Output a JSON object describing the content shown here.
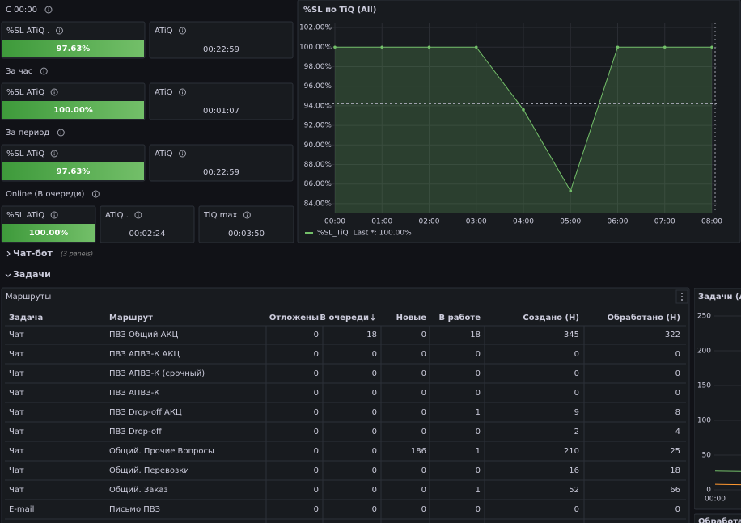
{
  "sections": [
    {
      "title": "С 00:00",
      "panels": [
        {
          "title": "%SL ATiQ .",
          "value": "97.63%",
          "highlight": true
        },
        {
          "title": "ATiQ",
          "value": "00:22:59"
        }
      ]
    },
    {
      "title": "За час",
      "panels": [
        {
          "title": "%SL ATiQ",
          "value": "100.00%",
          "highlight": true
        },
        {
          "title": "ATiQ",
          "value": "00:01:07"
        }
      ]
    },
    {
      "title": "За период",
      "panels": [
        {
          "title": "%SL ATiQ",
          "value": "97.63%",
          "highlight": true
        },
        {
          "title": "ATiQ",
          "value": "00:22:59"
        }
      ]
    },
    {
      "title": "Online (В очереди)",
      "panels": [
        {
          "title": "%SL ATiQ",
          "value": "100.00%",
          "highlight": true
        },
        {
          "title": "ATiQ .",
          "value": "00:02:24"
        },
        {
          "title": "TiQ max",
          "value": "00:03:50"
        }
      ]
    }
  ],
  "sl_chart": {
    "type": "area",
    "title": "%SL по TiQ (All)",
    "categories": [
      "00:00",
      "01:00",
      "02:00",
      "03:00",
      "04:00",
      "05:00",
      "06:00",
      "07:00",
      "08:00"
    ],
    "series": [
      {
        "name": "%SL_TiQ",
        "legend_note": "Last *: 100.00%",
        "color": "#73bf69",
        "values": [
          100,
          100,
          100,
          100,
          93.6,
          85.3,
          100,
          100,
          100
        ]
      }
    ],
    "threshold": 94.2,
    "ylim": [
      83,
      102.5
    ],
    "yticks": [
      {
        "value": 84,
        "label": "84.00%"
      },
      {
        "value": 86,
        "label": "86.00%"
      },
      {
        "value": 88,
        "label": "88.00%"
      },
      {
        "value": 90,
        "label": "90.00%"
      },
      {
        "value": 92,
        "label": "92.00%"
      },
      {
        "value": 94,
        "label": "94.00%"
      },
      {
        "value": 96,
        "label": "96.00%"
      },
      {
        "value": 98,
        "label": "98.00%"
      },
      {
        "value": 100,
        "label": "100.00%"
      },
      {
        "value": 102,
        "label": "102.00%"
      }
    ],
    "grid": true
  },
  "rows": [
    {
      "title": "Чат-бот",
      "note": "(3 panels)"
    },
    {
      "title": "Задачи"
    }
  ],
  "routes_table": {
    "title": "Маршруты",
    "columns": [
      "Задача",
      "Маршрут",
      "Отложены",
      "В очереди",
      "Новые",
      "В работе",
      "Создано (Н)",
      "Обработано (Н)"
    ],
    "rows": [
      [
        "Чат",
        "ПВЗ Общий АКЦ",
        0,
        18,
        0,
        18,
        345,
        322
      ],
      [
        "Чат",
        "ПВЗ АПВЗ-К АКЦ",
        0,
        0,
        0,
        0,
        0,
        0
      ],
      [
        "Чат",
        "ПВЗ АПВЗ-К (срочный)",
        0,
        0,
        0,
        0,
        0,
        0
      ],
      [
        "Чат",
        "ПВЗ АПВЗ-К",
        0,
        0,
        0,
        0,
        0,
        0
      ],
      [
        "Чат",
        "ПВЗ Drop-off АКЦ",
        0,
        0,
        0,
        1,
        9,
        8
      ],
      [
        "Чат",
        "ПВЗ Drop-off",
        0,
        0,
        0,
        0,
        2,
        4
      ],
      [
        "Чат",
        "Общий. Прочие Вопросы",
        0,
        0,
        186,
        1,
        210,
        25
      ],
      [
        "Чат",
        "Общий. Перевозки",
        0,
        0,
        0,
        0,
        16,
        18
      ],
      [
        "Чат",
        "Общий. Заказ",
        0,
        0,
        0,
        1,
        52,
        66
      ],
      [
        "E-mail",
        "Письмо ПВЗ",
        0,
        0,
        0,
        0,
        0,
        0
      ]
    ]
  },
  "tasks_chart": {
    "type": "line",
    "title": "Задачи (All",
    "x": [
      "00:00",
      null
    ],
    "series": [
      {
        "color": "#73bf69",
        "values": [
          27,
          26
        ]
      },
      {
        "color": "#ff9830",
        "values": [
          8,
          7
        ]
      },
      {
        "color": "#5794f2",
        "values": [
          4,
          4
        ]
      }
    ],
    "ylim": [
      0,
      262
    ],
    "yticks": [
      0,
      50,
      100,
      150,
      200,
      250
    ]
  },
  "next_panel": {
    "title": "Обработа"
  }
}
